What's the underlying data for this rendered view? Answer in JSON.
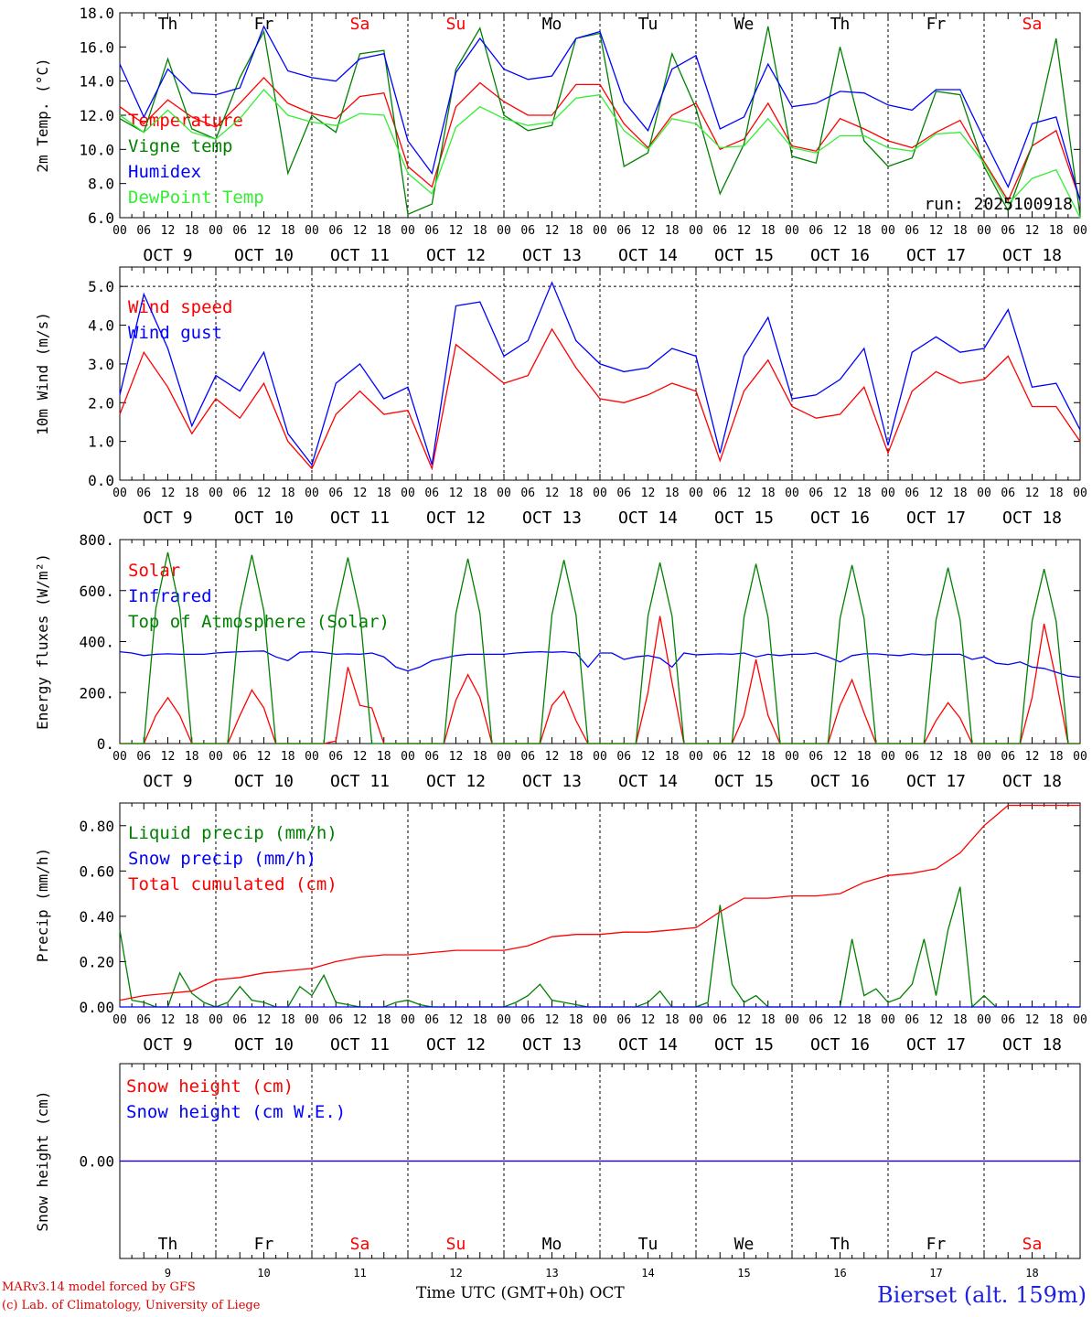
{
  "days": {
    "weekdays": [
      "Th",
      "Fr",
      "Sa",
      "Su",
      "Mo",
      "Tu",
      "We",
      "Th",
      "Fr",
      "Sa"
    ],
    "weekend_flags": [
      false,
      false,
      true,
      true,
      false,
      false,
      false,
      false,
      false,
      true
    ],
    "date_labels": [
      "OCT  9",
      "OCT 10",
      "OCT 11",
      "OCT 12",
      "OCT 13",
      "OCT 14",
      "OCT 15",
      "OCT 16",
      "OCT 17",
      "OCT 18"
    ],
    "day_numbers": [
      "9",
      "10",
      "11",
      "12",
      "13",
      "14",
      "15",
      "16",
      "17",
      "18"
    ],
    "hour_ticks": [
      "00",
      "06",
      "12",
      "18"
    ]
  },
  "colors": {
    "red": "#ff0000",
    "dark_green": "#008000",
    "blue": "#0000ff",
    "light_green": "#33ee33",
    "weekend": "#ff0000"
  },
  "chart_data": [
    {
      "id": "temperature",
      "type": "line",
      "ylabel": "2m Temp. (°C)",
      "ylim": [
        6.0,
        18.0
      ],
      "yticks": [
        "6.0",
        "8.0",
        "10.0",
        "12.0",
        "14.0",
        "16.0",
        "18.0"
      ],
      "annotation": "run: 2025100918",
      "x": [
        0,
        6,
        12,
        18,
        24,
        30,
        36,
        42,
        48,
        54,
        60,
        66,
        72,
        78,
        84,
        90,
        96,
        102,
        108,
        114,
        120,
        126,
        132,
        138,
        144,
        150,
        156,
        162,
        168,
        174,
        180,
        186,
        192,
        198,
        204,
        210,
        216,
        222,
        228,
        234,
        240
      ],
      "series": [
        {
          "name": "Temperature",
          "color": "#ff0000",
          "values": [
            12.5,
            11.5,
            12.9,
            11.9,
            11.3,
            12.7,
            14.2,
            12.7,
            12.1,
            11.8,
            13.1,
            13.3,
            9.0,
            7.8,
            12.5,
            13.9,
            12.8,
            12.0,
            12.0,
            13.8,
            13.8,
            11.5,
            10.1,
            12.0,
            12.7,
            10.0,
            10.6,
            12.7,
            10.2,
            9.9,
            11.8,
            11.2,
            10.5,
            10.1,
            11.0,
            11.7,
            9.3,
            7.0,
            10.2,
            11.1,
            7.0
          ]
        },
        {
          "name": "Vigne temp",
          "color": "#008000",
          "values": [
            11.8,
            11.0,
            15.3,
            11.2,
            10.6,
            14.2,
            16.9,
            8.6,
            12.0,
            11.0,
            15.6,
            15.8,
            6.2,
            6.8,
            14.7,
            17.1,
            12.0,
            11.1,
            11.4,
            16.5,
            16.8,
            9.0,
            9.8,
            15.6,
            12.4,
            7.4,
            10.3,
            17.2,
            9.6,
            9.2,
            16.0,
            10.5,
            9.0,
            9.5,
            13.4,
            13.2,
            9.0,
            6.4,
            10.2,
            16.5,
            6.1
          ]
        },
        {
          "name": "Humidex",
          "color": "#0000ff",
          "values": [
            15.0,
            11.9,
            14.7,
            13.3,
            13.2,
            13.6,
            17.2,
            14.6,
            14.2,
            14.0,
            15.3,
            15.6,
            10.5,
            8.6,
            14.5,
            16.5,
            14.7,
            14.1,
            14.3,
            16.5,
            16.9,
            12.8,
            11.1,
            14.7,
            15.5,
            11.2,
            11.9,
            15.0,
            12.5,
            12.7,
            13.4,
            13.3,
            12.6,
            12.3,
            13.5,
            13.5,
            10.6,
            7.8,
            11.5,
            11.9,
            7.0
          ]
        },
        {
          "name": "DewPoint Temp",
          "color": "#33ee33",
          "values": [
            12.0,
            11.0,
            12.3,
            11.0,
            10.6,
            11.8,
            13.5,
            12.0,
            11.6,
            11.4,
            12.1,
            12.0,
            8.6,
            7.4,
            11.3,
            12.5,
            11.8,
            11.4,
            11.6,
            13.0,
            13.2,
            11.1,
            10.0,
            11.8,
            11.5,
            10.1,
            10.2,
            11.8,
            10.1,
            9.8,
            10.8,
            10.8,
            10.1,
            9.9,
            10.9,
            11.0,
            9.2,
            6.8,
            8.3,
            8.8,
            6.0
          ]
        }
      ]
    },
    {
      "id": "wind",
      "type": "line",
      "ylabel": "10m Wind (m/s)",
      "ylim": [
        0.0,
        5.5
      ],
      "yticks": [
        "0.0",
        "1.0",
        "2.0",
        "3.0",
        "4.0",
        "5.0"
      ],
      "x": [
        0,
        6,
        12,
        18,
        24,
        30,
        36,
        42,
        48,
        54,
        60,
        66,
        72,
        78,
        84,
        90,
        96,
        102,
        108,
        114,
        120,
        126,
        132,
        138,
        144,
        150,
        156,
        162,
        168,
        174,
        180,
        186,
        192,
        198,
        204,
        210,
        216,
        222,
        228,
        234,
        240
      ],
      "series": [
        {
          "name": "Wind speed",
          "color": "#ff0000",
          "values": [
            1.7,
            3.3,
            2.4,
            1.2,
            2.1,
            1.6,
            2.5,
            1.0,
            0.3,
            1.7,
            2.3,
            1.7,
            1.8,
            0.3,
            3.5,
            3.0,
            2.5,
            2.7,
            3.9,
            2.9,
            2.1,
            2.0,
            2.2,
            2.5,
            2.3,
            0.5,
            2.3,
            3.1,
            1.9,
            1.6,
            1.7,
            2.4,
            0.7,
            2.3,
            2.8,
            2.5,
            2.6,
            3.2,
            1.9,
            1.9,
            1.0
          ]
        },
        {
          "name": "Wind gust",
          "color": "#0000ff",
          "values": [
            2.2,
            4.8,
            3.4,
            1.4,
            2.7,
            2.3,
            3.3,
            1.2,
            0.4,
            2.5,
            3.0,
            2.1,
            2.4,
            0.4,
            4.5,
            4.6,
            3.2,
            3.6,
            5.1,
            3.6,
            3.0,
            2.8,
            2.9,
            3.4,
            3.2,
            0.7,
            3.2,
            4.2,
            2.1,
            2.2,
            2.6,
            3.4,
            0.9,
            3.3,
            3.7,
            3.3,
            3.4,
            4.4,
            2.4,
            2.5,
            1.3
          ]
        }
      ]
    },
    {
      "id": "energy",
      "type": "line",
      "ylabel": "Energy fluxes (W/m²)",
      "ylim": [
        0,
        800
      ],
      "yticks": [
        "0.",
        "200.",
        "400.",
        "600.",
        "800."
      ],
      "x": [
        0,
        3,
        6,
        9,
        12,
        15,
        18,
        21,
        24,
        27,
        30,
        33,
        36,
        39,
        42,
        45,
        48,
        51,
        54,
        57,
        60,
        63,
        66,
        69,
        72,
        75,
        78,
        81,
        84,
        87,
        90,
        93,
        96,
        99,
        102,
        105,
        108,
        111,
        114,
        117,
        120,
        123,
        126,
        129,
        132,
        135,
        138,
        141,
        144,
        147,
        150,
        153,
        156,
        159,
        162,
        165,
        168,
        171,
        174,
        177,
        180,
        183,
        186,
        189,
        192,
        195,
        198,
        201,
        204,
        207,
        210,
        213,
        216,
        219,
        222,
        225,
        228,
        231,
        234,
        237,
        240
      ],
      "series": [
        {
          "name": "Solar",
          "color": "#ff0000",
          "values": [
            0,
            0,
            0,
            110,
            180,
            110,
            0,
            0,
            0,
            0,
            110,
            210,
            140,
            0,
            0,
            0,
            0,
            0,
            10,
            300,
            150,
            140,
            0,
            0,
            0,
            0,
            0,
            0,
            170,
            270,
            180,
            0,
            0,
            0,
            0,
            0,
            150,
            205,
            90,
            0,
            0,
            0,
            0,
            0,
            200,
            500,
            240,
            0,
            0,
            0,
            0,
            0,
            110,
            330,
            110,
            0,
            0,
            0,
            0,
            0,
            150,
            250,
            120,
            0,
            0,
            0,
            0,
            0,
            90,
            160,
            100,
            0,
            0,
            0,
            0,
            0,
            180,
            470,
            250,
            0,
            0
          ]
        },
        {
          "name": "Infrared",
          "color": "#0000ff",
          "values": [
            360,
            355,
            345,
            350,
            352,
            350,
            350,
            350,
            355,
            358,
            360,
            362,
            363,
            340,
            325,
            358,
            360,
            357,
            350,
            352,
            350,
            355,
            340,
            300,
            285,
            300,
            325,
            335,
            345,
            350,
            350,
            350,
            350,
            355,
            358,
            360,
            358,
            360,
            355,
            300,
            355,
            355,
            330,
            340,
            345,
            335,
            300,
            355,
            348,
            350,
            352,
            350,
            355,
            340,
            350,
            345,
            350,
            350,
            355,
            340,
            320,
            345,
            352,
            352,
            348,
            345,
            352,
            348,
            350,
            350,
            350,
            330,
            340,
            315,
            310,
            320,
            300,
            295,
            280,
            265,
            260
          ]
        },
        {
          "name": "Top of Atmosphere (Solar)",
          "color": "#008000",
          "values": [
            0,
            0,
            0,
            530,
            750,
            530,
            0,
            0,
            0,
            0,
            520,
            740,
            520,
            0,
            0,
            0,
            0,
            0,
            515,
            730,
            515,
            0,
            0,
            0,
            0,
            0,
            0,
            0,
            510,
            725,
            510,
            0,
            0,
            0,
            0,
            0,
            505,
            720,
            505,
            0,
            0,
            0,
            0,
            0,
            500,
            710,
            500,
            0,
            0,
            0,
            0,
            0,
            495,
            705,
            495,
            0,
            0,
            0,
            0,
            0,
            490,
            700,
            490,
            0,
            0,
            0,
            0,
            0,
            485,
            690,
            485,
            0,
            0,
            0,
            0,
            0,
            480,
            685,
            480,
            0,
            0
          ]
        }
      ]
    },
    {
      "id": "precip",
      "type": "line",
      "ylabel": "Precip (mm/h)",
      "ylim": [
        0.0,
        0.9
      ],
      "yticks": [
        "0.00",
        "0.20",
        "0.40",
        "0.60",
        "0.80"
      ],
      "series": [
        {
          "name": "Liquid precip (mm/h)",
          "color": "#008000",
          "x": [
            0,
            3,
            6,
            9,
            12,
            15,
            18,
            21,
            24,
            27,
            30,
            33,
            36,
            39,
            42,
            45,
            48,
            51,
            54,
            57,
            60,
            63,
            66,
            69,
            72,
            75,
            78,
            81,
            84,
            87,
            90,
            93,
            96,
            99,
            102,
            105,
            108,
            111,
            114,
            117,
            120,
            123,
            126,
            129,
            132,
            135,
            138,
            141,
            144,
            147,
            150,
            153,
            156,
            159,
            162,
            165,
            168,
            171,
            174,
            177,
            180,
            183,
            186,
            189,
            192,
            195,
            198,
            201,
            204,
            207,
            210,
            213,
            216,
            219,
            222,
            225,
            228,
            231,
            234,
            237,
            240
          ],
          "values": [
            0.34,
            0.03,
            0.02,
            0.0,
            0.0,
            0.15,
            0.06,
            0.02,
            0.0,
            0.02,
            0.09,
            0.03,
            0.02,
            0.0,
            0.0,
            0.09,
            0.05,
            0.14,
            0.02,
            0.01,
            0.0,
            0.0,
            0.0,
            0.02,
            0.03,
            0.01,
            0.0,
            0.0,
            0.0,
            0.0,
            0.0,
            0.0,
            0.0,
            0.02,
            0.05,
            0.1,
            0.03,
            0.02,
            0.01,
            0.0,
            0.0,
            0.0,
            0.0,
            0.0,
            0.02,
            0.07,
            0.0,
            0.0,
            0.0,
            0.02,
            0.45,
            0.1,
            0.02,
            0.05,
            0.0,
            0.0,
            0.0,
            0.0,
            0.0,
            0.0,
            0.0,
            0.3,
            0.05,
            0.08,
            0.02,
            0.04,
            0.1,
            0.3,
            0.05,
            0.34,
            0.53,
            0.0,
            0.05,
            0.0,
            0.0,
            0.0,
            0.0,
            0.0,
            0.0,
            0.0,
            0.0
          ]
        },
        {
          "name": "Snow precip (mm/h)",
          "color": "#0000ff",
          "x": [
            0,
            240
          ],
          "values": [
            0,
            0
          ]
        },
        {
          "name": "Total cumulated (cm)",
          "color": "#ff0000",
          "x": [
            0,
            6,
            12,
            18,
            24,
            30,
            36,
            42,
            48,
            54,
            60,
            66,
            72,
            78,
            84,
            90,
            96,
            102,
            108,
            114,
            120,
            126,
            132,
            138,
            144,
            150,
            156,
            162,
            168,
            174,
            180,
            186,
            192,
            198,
            204,
            210,
            216,
            222,
            228,
            234,
            240
          ],
          "values": [
            0.03,
            0.05,
            0.06,
            0.07,
            0.12,
            0.13,
            0.15,
            0.16,
            0.17,
            0.2,
            0.22,
            0.23,
            0.23,
            0.24,
            0.25,
            0.25,
            0.25,
            0.27,
            0.31,
            0.32,
            0.32,
            0.33,
            0.33,
            0.34,
            0.35,
            0.42,
            0.48,
            0.48,
            0.49,
            0.49,
            0.5,
            0.55,
            0.58,
            0.59,
            0.61,
            0.68,
            0.8,
            0.89,
            0.89,
            0.89,
            0.89
          ]
        }
      ]
    },
    {
      "id": "snow",
      "type": "line",
      "ylabel": "Snow height (cm)",
      "ylim": [
        -1.0,
        1.0
      ],
      "yticks": [
        "0.00"
      ],
      "x": [
        0,
        240
      ],
      "series": [
        {
          "name": "Snow height (cm)",
          "color": "#ff0000",
          "values": [
            0,
            0
          ]
        },
        {
          "name": "Snow height (cm W.E.)",
          "color": "#0000ff",
          "values": [
            0,
            0
          ]
        }
      ]
    }
  ],
  "footer": {
    "credit_line1": "MARv3.14 model forced by GFS",
    "credit_line2": "(c) Lab. of Climatology, University of Liege",
    "x_axis_title": "Time UTC (GMT+0h) OCT",
    "station": "Bierset (alt. 159m)"
  }
}
